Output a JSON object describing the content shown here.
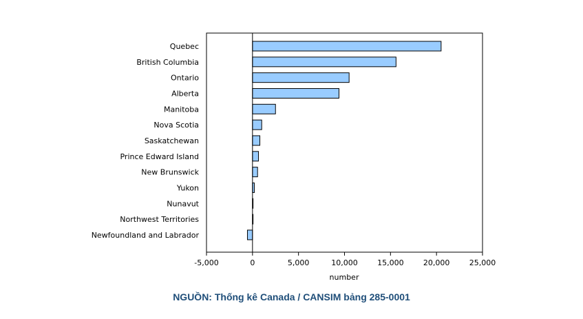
{
  "chart_data": {
    "type": "bar",
    "orientation": "horizontal",
    "title": "",
    "xlabel": "number",
    "ylabel": "",
    "xlim": [
      -5000,
      25000
    ],
    "x_ticks": [
      -5000,
      0,
      5000,
      10000,
      15000,
      20000,
      25000
    ],
    "x_tick_labels": [
      "-5,000",
      "0",
      "5,000",
      "10,000",
      "15,000",
      "20,000",
      "25,000"
    ],
    "grid": false,
    "legend": "none",
    "categories": [
      "Quebec",
      "British Columbia",
      "Ontario",
      "Alberta",
      "Manitoba",
      "Nova Scotia",
      "Saskatchewan",
      "Prince Edward Island",
      "New Brunswick",
      "Yukon",
      "Nunavut",
      "Northwest Territories",
      "Newfoundland and Labrador"
    ],
    "values": [
      20500,
      15600,
      10500,
      9400,
      2500,
      1000,
      800,
      650,
      550,
      200,
      50,
      30,
      -550
    ],
    "bar_color": "#99ccff",
    "bar_stroke": "#000000"
  },
  "source": {
    "text": "NGUỒN: Thống kê Canada / CANSIM bảng 285-0001"
  }
}
